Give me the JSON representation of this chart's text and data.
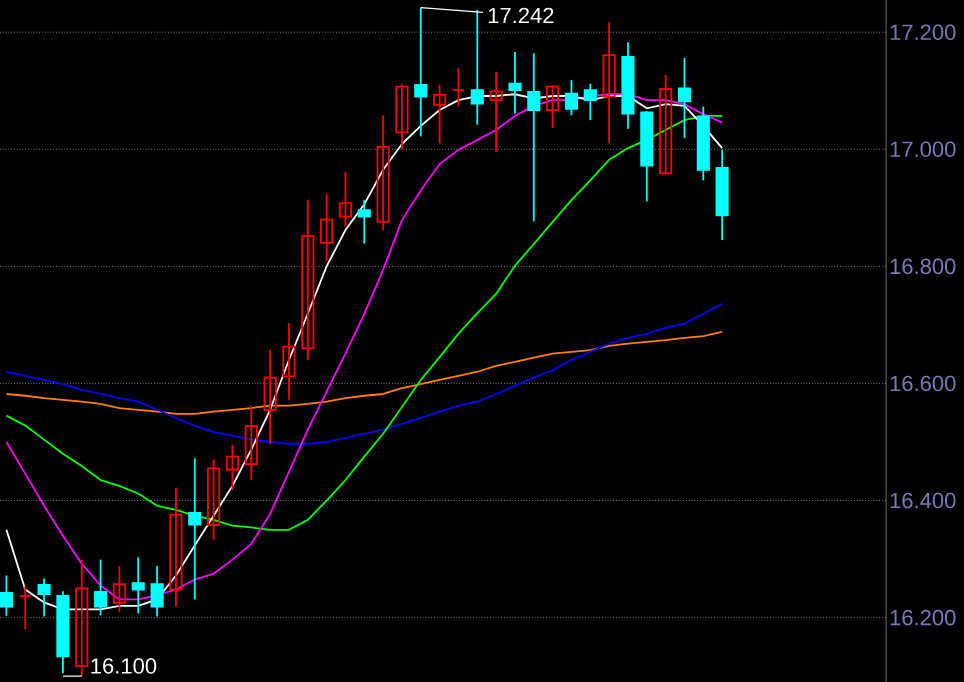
{
  "chart_data": {
    "type": "candlestick",
    "categories": [
      null,
      null,
      null,
      null,
      null,
      null,
      null,
      null,
      null,
      null,
      null,
      null,
      null,
      null,
      null,
      null,
      null,
      null,
      null,
      null,
      null,
      null,
      null,
      null,
      null,
      null,
      null,
      null,
      null,
      null,
      null,
      null,
      null,
      null,
      null,
      null,
      null,
      null,
      null
    ],
    "ohlc": [
      [
        16.242,
        16.272,
        16.203,
        16.219
      ],
      [
        16.237,
        16.254,
        16.18,
        16.237
      ],
      [
        16.256,
        16.267,
        16.202,
        16.24
      ],
      [
        16.237,
        16.245,
        16.105,
        16.134
      ],
      [
        16.117,
        16.299,
        16.1,
        16.25
      ],
      [
        16.244,
        16.299,
        16.204,
        16.219
      ],
      [
        16.225,
        16.288,
        16.21,
        16.257
      ],
      [
        16.259,
        16.303,
        16.207,
        16.248
      ],
      [
        16.257,
        16.288,
        16.202,
        16.219
      ],
      [
        16.248,
        16.422,
        16.219,
        16.376
      ],
      [
        16.379,
        16.472,
        16.231,
        16.359
      ],
      [
        16.358,
        16.47,
        16.333,
        16.455
      ],
      [
        16.453,
        16.495,
        16.418,
        16.475
      ],
      [
        16.462,
        16.562,
        16.435,
        16.527
      ],
      [
        16.555,
        16.657,
        16.497,
        16.61
      ],
      [
        16.612,
        16.703,
        16.572,
        16.663
      ],
      [
        16.66,
        16.913,
        16.64,
        16.852
      ],
      [
        16.84,
        16.923,
        16.809,
        16.88
      ],
      [
        16.885,
        16.961,
        16.869,
        16.908
      ],
      [
        16.896,
        16.913,
        16.839,
        16.885
      ],
      [
        16.876,
        17.058,
        16.862,
        17.004
      ],
      [
        17.029,
        17.112,
        17.0,
        17.107
      ],
      [
        17.11,
        17.242,
        17.022,
        17.09
      ],
      [
        17.076,
        17.11,
        17.01,
        17.093
      ],
      [
        17.101,
        17.139,
        17.073,
        17.101
      ],
      [
        17.101,
        17.238,
        17.042,
        17.078
      ],
      [
        17.084,
        17.132,
        16.995,
        17.099
      ],
      [
        17.112,
        17.166,
        17.061,
        17.101
      ],
      [
        17.098,
        17.164,
        16.877,
        17.067
      ],
      [
        17.067,
        17.11,
        17.036,
        17.107
      ],
      [
        17.095,
        17.118,
        17.058,
        17.069
      ],
      [
        17.101,
        17.112,
        17.05,
        17.084
      ],
      [
        17.09,
        17.217,
        17.01,
        17.161
      ],
      [
        17.158,
        17.183,
        17.035,
        17.061
      ],
      [
        17.063,
        17.065,
        16.911,
        16.972
      ],
      [
        16.959,
        17.127,
        16.957,
        17.103
      ],
      [
        17.104,
        17.156,
        17.019,
        17.082
      ],
      [
        17.056,
        17.073,
        16.947,
        16.965
      ],
      [
        16.968,
        16.999,
        16.845,
        16.887
      ]
    ],
    "colors": [
      "#00ffff",
      "#ff0000",
      "#00ffff",
      "#00ffff",
      "#ff0000",
      "#00ffff",
      "#ff0000",
      "#00ffff",
      "#00ffff",
      "#ff0000",
      "#00ffff",
      "#ff0000",
      "#ff0000",
      "#ff0000",
      "#ff0000",
      "#ff0000",
      "#ff0000",
      "#ff0000",
      "#ff0000",
      "#00ffff",
      "#ff0000",
      "#ff0000",
      "#00ffff",
      "#ff0000",
      "#ff0000",
      "#00ffff",
      "#ff0000",
      "#00ffff",
      "#00ffff",
      "#ff0000",
      "#00ffff",
      "#00ffff",
      "#ff0000",
      "#00ffff",
      "#00ffff",
      "#ff0000",
      "#00ffff",
      "#00ffff",
      "#00ffff"
    ],
    "series": [
      {
        "type": "line",
        "color": "#ff8000",
        "values": [
          16.582,
          16.579,
          16.575,
          16.572,
          16.569,
          16.565,
          16.558,
          16.555,
          16.552,
          16.548,
          16.548,
          16.552,
          16.555,
          16.558,
          16.562,
          16.562,
          16.565,
          16.569,
          16.575,
          16.579,
          16.582,
          16.592,
          16.599,
          16.606,
          16.613,
          16.62,
          16.63,
          16.637,
          16.644,
          16.651,
          16.654,
          16.657,
          16.664,
          16.668,
          16.671,
          16.674,
          16.678,
          16.681,
          16.688
        ]
      },
      {
        "type": "line",
        "color": "#0000ff",
        "values": [
          16.62,
          16.613,
          16.606,
          16.599,
          16.589,
          16.582,
          16.575,
          16.569,
          16.555,
          16.541,
          16.528,
          16.517,
          16.511,
          16.504,
          16.5,
          16.497,
          16.497,
          16.5,
          16.507,
          16.514,
          16.521,
          16.531,
          16.541,
          16.552,
          16.562,
          16.569,
          16.582,
          16.596,
          16.61,
          16.623,
          16.64,
          16.654,
          16.668,
          16.678,
          16.685,
          16.695,
          16.702,
          16.719,
          16.736
        ]
      },
      {
        "type": "line",
        "color": "#00ff00",
        "values": [
          16.545,
          16.528,
          16.504,
          16.48,
          16.459,
          16.435,
          16.425,
          16.412,
          16.391,
          16.384,
          16.374,
          16.367,
          16.357,
          16.354,
          16.35,
          16.35,
          16.367,
          16.4,
          16.435,
          16.475,
          16.514,
          16.56,
          16.606,
          16.645,
          16.685,
          16.72,
          16.753,
          16.801,
          16.838,
          16.876,
          16.913,
          16.947,
          16.982,
          17.002,
          17.016,
          17.033,
          17.05,
          17.057,
          17.057
        ]
      },
      {
        "type": "line",
        "color": "#ff00ff",
        "values": [
          16.5,
          16.446,
          16.391,
          16.34,
          16.292,
          16.255,
          16.231,
          16.231,
          16.238,
          16.248,
          16.265,
          16.275,
          16.299,
          16.326,
          16.377,
          16.449,
          16.521,
          16.586,
          16.651,
          16.719,
          16.794,
          16.879,
          16.93,
          16.975,
          16.999,
          17.016,
          17.033,
          17.057,
          17.074,
          17.084,
          17.084,
          17.091,
          17.094,
          17.094,
          17.084,
          17.084,
          17.077,
          17.06,
          17.046
        ]
      },
      {
        "type": "line",
        "color": "#ffffff",
        "values": [
          16.35,
          16.248,
          16.226,
          16.214,
          16.214,
          16.214,
          16.22,
          16.22,
          16.231,
          16.272,
          16.323,
          16.374,
          16.425,
          16.487,
          16.555,
          16.64,
          16.719,
          16.8,
          16.862,
          16.906,
          16.965,
          17.009,
          17.04,
          17.067,
          17.084,
          17.091,
          17.091,
          17.094,
          17.087,
          17.091,
          17.091,
          17.084,
          17.091,
          17.091,
          17.07,
          17.077,
          17.074,
          17.04,
          17.002
        ]
      }
    ],
    "ylim": [
      16.09,
      17.255
    ],
    "yticks": [
      {
        "value": 16.2,
        "label": "16.200"
      },
      {
        "value": 16.4,
        "label": "16.400"
      },
      {
        "value": 16.6,
        "label": "16.600"
      },
      {
        "value": 16.8,
        "label": "16.800"
      },
      {
        "value": 17.0,
        "label": "17.000"
      },
      {
        "value": 17.2,
        "label": "17.200"
      }
    ],
    "grid": "y",
    "tick_labels": "y",
    "annotations": [
      "17.242",
      "16.100"
    ]
  }
}
